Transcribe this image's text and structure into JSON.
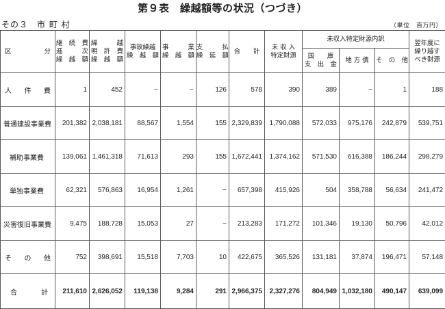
{
  "title": "第９表　繰越額等の状況（つづき）",
  "subtitle": "その３　市 町 村",
  "unit": "（単位　百万円）",
  "headers": {
    "category": [
      "区",
      "分"
    ],
    "keizoku": [
      "継　続　費",
      "逓　　　次",
      "繰　越　額"
    ],
    "meikyo": [
      "繰　　　越",
      "明　許　費",
      "繰　越　額"
    ],
    "jiko": [
      "事故繰越",
      "繰　越　額"
    ],
    "jigyo": [
      "事　　　業",
      "繰　越　額"
    ],
    "shiharai": [
      "支　　　払",
      "繰　延　額"
    ],
    "total": "合　　計",
    "mishuunyuu": [
      "未 収 入",
      "特定財源"
    ],
    "breakdown_group": "未収入特定財源内訳",
    "kokko": [
      "国　　庫",
      "支　出　金"
    ],
    "chihousai": "地 方 債",
    "sonota": "そ　の　他",
    "yokunendo": [
      "翌年度に",
      "繰り越す",
      "べき財源"
    ]
  },
  "rows": [
    {
      "label": "人件費",
      "chars": [
        "人",
        "件",
        "費"
      ],
      "values": [
        "1",
        "452",
        "−",
        "−",
        "126",
        "578",
        "390",
        "389",
        "−",
        "1",
        "188"
      ]
    },
    {
      "label": "普通建設事業費",
      "values": [
        "201,382",
        "2,038,181",
        "88,567",
        "1,554",
        "155",
        "2,329,839",
        "1,790,088",
        "572,033",
        "975,176",
        "242,879",
        "539,751"
      ]
    },
    {
      "label": "補助事業費",
      "values": [
        "139,061",
        "1,461,318",
        "71,613",
        "293",
        "155",
        "1,672,441",
        "1,374,162",
        "571,530",
        "616,388",
        "186,244",
        "298,279"
      ]
    },
    {
      "label": "単独事業費",
      "values": [
        "62,321",
        "576,863",
        "16,954",
        "1,261",
        "−",
        "657,398",
        "415,926",
        "504",
        "358,788",
        "56,634",
        "241,472"
      ]
    },
    {
      "label": "災害復旧事業費",
      "values": [
        "9,475",
        "188,728",
        "15,053",
        "27",
        "−",
        "213,283",
        "171,272",
        "101,346",
        "19,130",
        "50,796",
        "42,012"
      ]
    },
    {
      "label": "その他",
      "chars": [
        "そ",
        "の",
        "他"
      ],
      "values": [
        "752",
        "398,691",
        "15,518",
        "7,703",
        "10",
        "422,675",
        "365,526",
        "131,181",
        "37,874",
        "196,471",
        "57,148"
      ]
    },
    {
      "label": "合計",
      "chars": [
        "合",
        "計"
      ],
      "values": [
        "211,610",
        "2,626,052",
        "119,138",
        "9,284",
        "291",
        "2,966,375",
        "2,327,276",
        "804,949",
        "1,032,180",
        "490,147",
        "639,099"
      ]
    }
  ]
}
